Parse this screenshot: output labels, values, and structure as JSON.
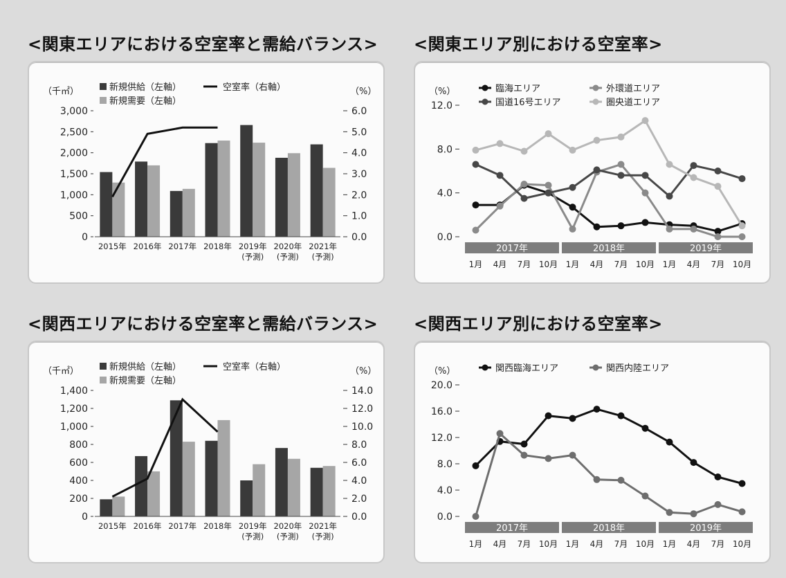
{
  "panels": [
    {
      "id": "kanto-balance",
      "heading": "<関東エリアにおける空室率と需給バランス>",
      "chart_data": {
        "type": "bar",
        "title": "",
        "categories": [
          "2015年",
          "2016年",
          "2017年",
          "2018年",
          "2019年\n(予測)",
          "2020年\n(予測)",
          "2021年\n(予測)"
        ],
        "series": [
          {
            "name": "新規供給（左軸）",
            "type": "bar",
            "axis": "left",
            "color": "#3a3a3a",
            "values": [
              1540,
              1790,
              1090,
              2230,
              2660,
              1880,
              2200
            ]
          },
          {
            "name": "新規需要（左軸）",
            "type": "bar",
            "axis": "left",
            "color": "#a6a6a6",
            "values": [
              1290,
              1700,
              1140,
              2290,
              2240,
              1990,
              1640
            ]
          },
          {
            "name": "空室率（右軸）",
            "type": "line",
            "axis": "right",
            "color": "#111111",
            "values": [
              1.9,
              4.9,
              5.2,
              5.2,
              null,
              null,
              null
            ]
          }
        ],
        "left_axis": {
          "unit": "（千㎡）",
          "ylim": [
            0,
            3000
          ],
          "ticks": [
            "0",
            "500",
            "1,000",
            "1,500",
            "2,000",
            "2,500",
            "3,000"
          ]
        },
        "right_axis": {
          "unit": "（%）",
          "ylim": [
            0,
            6
          ],
          "ticks": [
            "0.0",
            "1.0",
            "2.0",
            "3.0",
            "4.0",
            "5.0",
            "6.0"
          ]
        }
      }
    },
    {
      "id": "kanto-area",
      "heading": "<関東エリア別における空室率>",
      "chart_data": {
        "type": "line",
        "title": "",
        "x": [
          "1月",
          "4月",
          "7月",
          "10月",
          "1月",
          "4月",
          "7月",
          "10月",
          "1月",
          "4月",
          "7月",
          "10月"
        ],
        "year_bands": [
          "2017年",
          "2018年",
          "2019年"
        ],
        "series": [
          {
            "name": "臨海エリア",
            "color": "#111111",
            "values": [
              2.9,
              2.9,
              4.7,
              4.0,
              2.7,
              0.9,
              1.0,
              1.3,
              1.1,
              1.0,
              0.5,
              1.2
            ]
          },
          {
            "name": "外環道エリア",
            "color": "#8a8a8a",
            "values": [
              0.6,
              2.8,
              4.8,
              4.7,
              0.7,
              5.9,
              6.6,
              4.0,
              0.7,
              0.7,
              0.0,
              0.0
            ]
          },
          {
            "name": "国道16号エリア",
            "color": "#474747",
            "values": [
              6.6,
              5.6,
              3.5,
              4.0,
              4.5,
              6.1,
              5.6,
              5.6,
              3.7,
              6.5,
              6.0,
              5.3
            ]
          },
          {
            "name": "圏央道エリア",
            "color": "#b7b7b7",
            "values": [
              7.9,
              8.5,
              7.8,
              9.4,
              7.9,
              8.8,
              9.1,
              10.6,
              6.6,
              5.4,
              4.6,
              1.0
            ]
          }
        ],
        "y_axis": {
          "unit": "（%）",
          "ylim": [
            0,
            12
          ],
          "ticks": [
            "0.0",
            "4.0",
            "8.0",
            "12.0"
          ]
        }
      }
    },
    {
      "id": "kansai-balance",
      "heading": "<関西エリアにおける空室率と需給バランス>",
      "chart_data": {
        "type": "bar",
        "title": "",
        "categories": [
          "2015年",
          "2016年",
          "2017年",
          "2018年",
          "2019年\n(予測)",
          "2020年\n(予測)",
          "2021年\n(予測)"
        ],
        "series": [
          {
            "name": "新規供給（左軸）",
            "type": "bar",
            "axis": "left",
            "color": "#3a3a3a",
            "values": [
              190,
              670,
              1290,
              840,
              400,
              760,
              540
            ]
          },
          {
            "name": "新規需要（左軸）",
            "type": "bar",
            "axis": "left",
            "color": "#a6a6a6",
            "values": [
              220,
              500,
              830,
              1070,
              580,
              640,
              560
            ]
          },
          {
            "name": "空室率（右軸）",
            "type": "line",
            "axis": "right",
            "color": "#111111",
            "values": [
              2.2,
              4.2,
              13.0,
              9.4,
              null,
              null,
              null
            ]
          }
        ],
        "left_axis": {
          "unit": "（千㎡）",
          "ylim": [
            0,
            1400
          ],
          "ticks": [
            "0",
            "200",
            "400",
            "600",
            "800",
            "1,000",
            "1,200",
            "1,400"
          ]
        },
        "right_axis": {
          "unit": "（%）",
          "ylim": [
            0,
            14
          ],
          "ticks": [
            "0.0",
            "2.0",
            "4.0",
            "6.0",
            "8.0",
            "10.0",
            "12.0",
            "14.0"
          ]
        }
      }
    },
    {
      "id": "kansai-area",
      "heading": "<関西エリア別における空室率>",
      "chart_data": {
        "type": "line",
        "title": "",
        "x": [
          "1月",
          "4月",
          "7月",
          "10月",
          "1月",
          "4月",
          "7月",
          "10月",
          "1月",
          "4月",
          "7月",
          "10月"
        ],
        "year_bands": [
          "2017年",
          "2018年",
          "2019年"
        ],
        "series": [
          {
            "name": "関西臨海エリア",
            "color": "#111111",
            "values": [
              7.7,
              11.4,
              11.0,
              15.3,
              14.9,
              16.3,
              15.3,
              13.4,
              11.3,
              8.2,
              6.0,
              5.0
            ]
          },
          {
            "name": "関西内陸エリア",
            "color": "#6e6e6e",
            "values": [
              0.0,
              12.6,
              9.3,
              8.8,
              9.3,
              5.6,
              5.5,
              3.1,
              0.6,
              0.4,
              1.8,
              0.7
            ]
          }
        ],
        "y_axis": {
          "unit": "（%）",
          "ylim": [
            0,
            20
          ],
          "ticks": [
            "0.0",
            "4.0",
            "8.0",
            "12.0",
            "16.0",
            "20.0"
          ]
        }
      }
    }
  ]
}
